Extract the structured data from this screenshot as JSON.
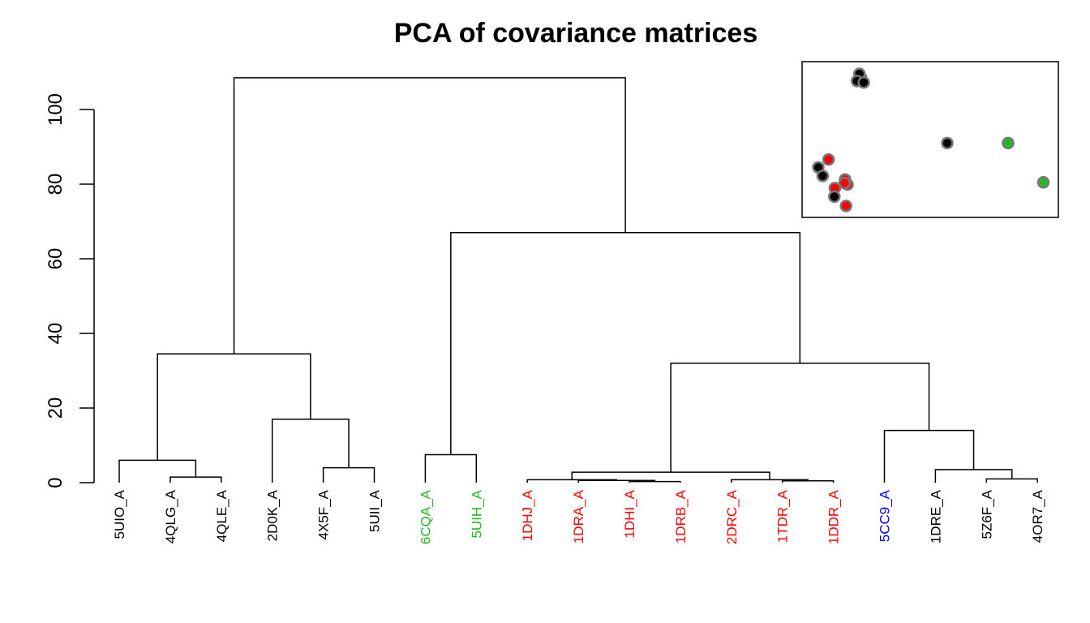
{
  "chart_data": [
    {
      "type": "dendrogram",
      "title": "PCA of covariance matrices",
      "ylim": [
        0,
        110
      ],
      "yticks": [
        "0",
        "20",
        "40",
        "60",
        "80",
        "100"
      ],
      "leaves": [
        {
          "label": "5UIO_A",
          "color": "#000000"
        },
        {
          "label": "4QLG_A",
          "color": "#000000"
        },
        {
          "label": "4QLE_A",
          "color": "#000000"
        },
        {
          "label": "2D0K_A",
          "color": "#000000"
        },
        {
          "label": "4X5F_A",
          "color": "#000000"
        },
        {
          "label": "5UII_A",
          "color": "#000000"
        },
        {
          "label": "6CQA_A",
          "color": "#22bb22"
        },
        {
          "label": "5UIH_A",
          "color": "#22bb22"
        },
        {
          "label": "1DHJ_A",
          "color": "#ff0000"
        },
        {
          "label": "1DRA_A",
          "color": "#ff0000"
        },
        {
          "label": "1DHI_A",
          "color": "#ff0000"
        },
        {
          "label": "1DRB_A",
          "color": "#ff0000"
        },
        {
          "label": "2DRC_A",
          "color": "#ff0000"
        },
        {
          "label": "1TDR_A",
          "color": "#ff0000"
        },
        {
          "label": "1DDR_A",
          "color": "#ff0000"
        },
        {
          "label": "5CC9_A",
          "color": "#0000ff"
        },
        {
          "label": "1DRE_A",
          "color": "#000000"
        },
        {
          "label": "5Z6F_A",
          "color": "#000000"
        },
        {
          "label": "4OR7_A",
          "color": "#000000"
        }
      ],
      "merges": [
        {
          "left": "L1",
          "right": "L2",
          "height": 1.5
        },
        {
          "left": "L0",
          "right": "M0",
          "height": 6
        },
        {
          "left": "L4",
          "right": "L5",
          "height": 4
        },
        {
          "left": "L3",
          "right": "M2",
          "height": 17
        },
        {
          "left": "M1",
          "right": "M3",
          "height": 34.5
        },
        {
          "left": "L6",
          "right": "L7",
          "height": 7.5
        },
        {
          "left": "L10",
          "right": "L11",
          "height": 0.3
        },
        {
          "left": "L9",
          "right": "M6",
          "height": 0.6
        },
        {
          "left": "L8",
          "right": "M7",
          "height": 0.8
        },
        {
          "left": "L13",
          "right": "L14",
          "height": 0.5
        },
        {
          "left": "L12",
          "right": "M9",
          "height": 0.8
        },
        {
          "left": "M8",
          "right": "M10",
          "height": 2.8
        },
        {
          "left": "L17",
          "right": "L18",
          "height": 1.0
        },
        {
          "left": "L16",
          "right": "M12",
          "height": 3.5
        },
        {
          "left": "L15",
          "right": "M13",
          "height": 14
        },
        {
          "left": "M11",
          "right": "M14",
          "height": 32
        },
        {
          "left": "M5",
          "right": "M15",
          "height": 67
        },
        {
          "left": "M4",
          "right": "M16",
          "height": 108.5
        }
      ]
    },
    {
      "type": "scatter",
      "points": [
        {
          "x": 0.215,
          "y": 0.935,
          "color": "#000000"
        },
        {
          "x": 0.209,
          "y": 0.96,
          "color": "#000000"
        },
        {
          "x": 0.199,
          "y": 0.91,
          "color": "#000000"
        },
        {
          "x": 0.227,
          "y": 0.9,
          "color": "#000000"
        },
        {
          "x": 0.57,
          "y": 0.475,
          "color": "#000000"
        },
        {
          "x": 0.82,
          "y": 0.475,
          "color": "#22bb22"
        },
        {
          "x": 0.965,
          "y": 0.2,
          "color": "#22bb22"
        },
        {
          "x": 0.082,
          "y": 0.36,
          "color": "#ff0000"
        },
        {
          "x": 0.04,
          "y": 0.305,
          "color": "#000000"
        },
        {
          "x": 0.058,
          "y": 0.245,
          "color": "#000000"
        },
        {
          "x": 0.15,
          "y": 0.22,
          "color": "#ff0000"
        },
        {
          "x": 0.16,
          "y": 0.185,
          "color": "#ff0000"
        },
        {
          "x": 0.148,
          "y": 0.195,
          "color": "#ff0000"
        },
        {
          "x": 0.108,
          "y": 0.16,
          "color": "#ff0000"
        },
        {
          "x": 0.106,
          "y": 0.1,
          "color": "#000000"
        },
        {
          "x": 0.154,
          "y": 0.035,
          "color": "#ff0000"
        }
      ]
    }
  ]
}
